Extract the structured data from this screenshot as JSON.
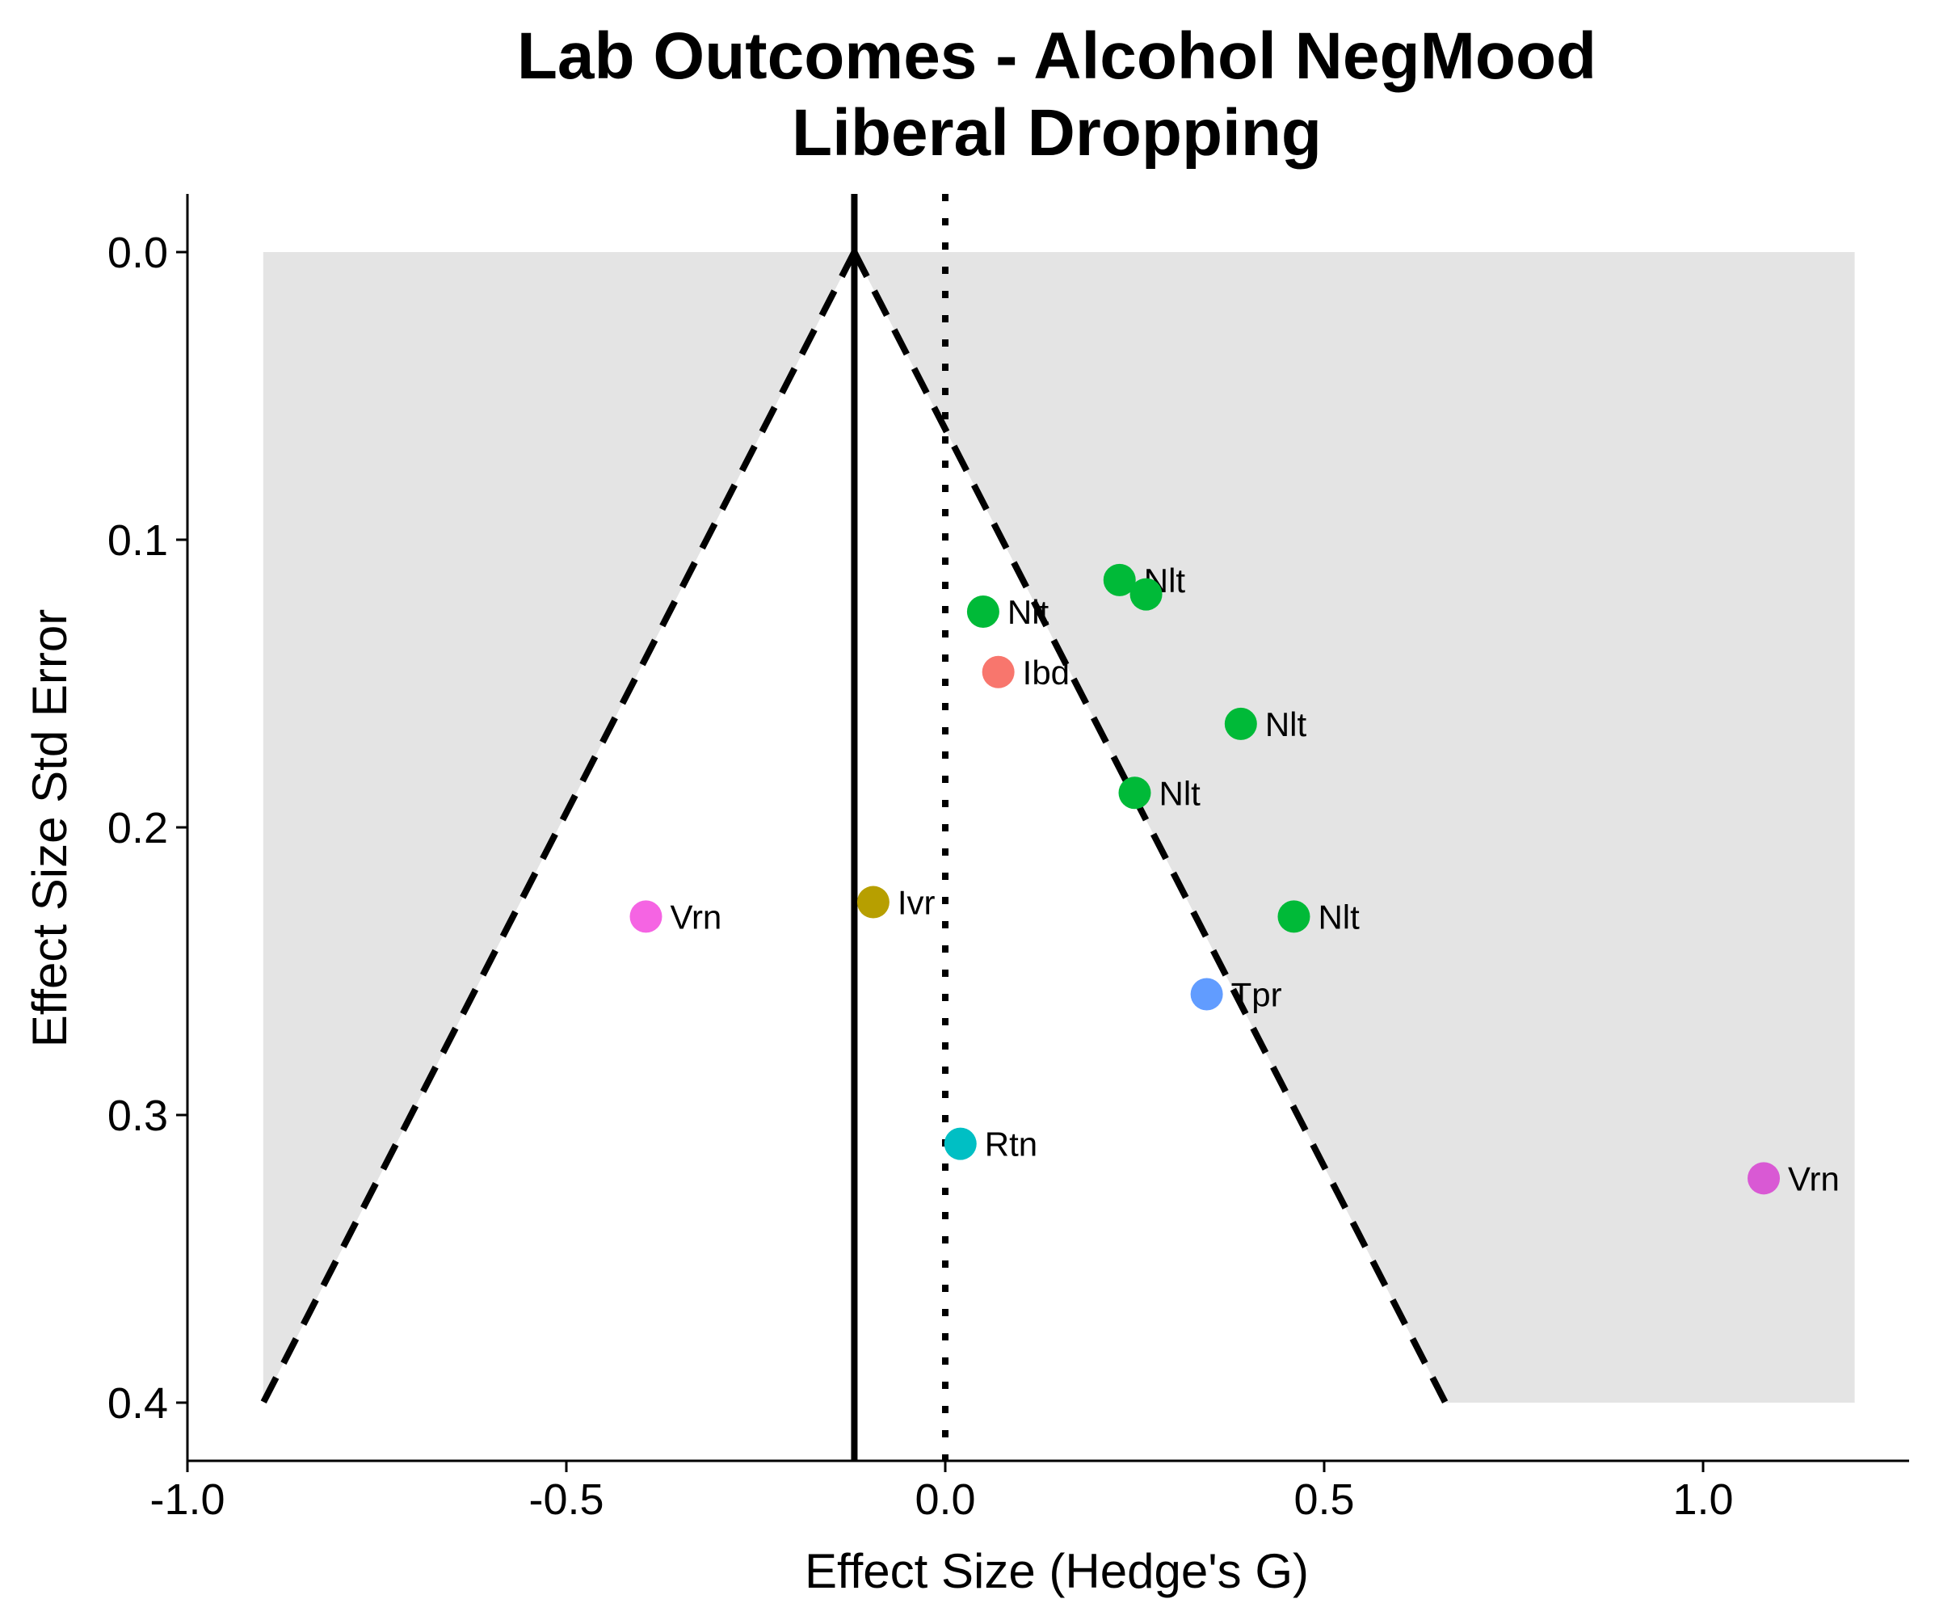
{
  "chart_data": {
    "type": "scatter",
    "title": [
      "Lab Outcomes - Alcohol NegMood",
      "Liberal Dropping"
    ],
    "xlabel": "Effect Size (Hedge's G)",
    "ylabel": "Effect Size Std Error",
    "xlim": [
      -1.0,
      1.27
    ],
    "ylim": [
      0.4,
      0.0
    ],
    "y_reversed": true,
    "xticks": [
      -1.0,
      -0.5,
      0.0,
      0.5,
      1.0
    ],
    "xtick_labels": [
      "-1.0",
      "-0.5",
      "0.0",
      "0.5",
      "1.0"
    ],
    "yticks": [
      0.0,
      0.1,
      0.2,
      0.3,
      0.4
    ],
    "ytick_labels": [
      "0.0",
      "0.1",
      "0.2",
      "0.3",
      "0.4"
    ],
    "grid": false,
    "legend": "none",
    "summary_effect": -0.12,
    "zero_line": 0.0,
    "funnel": {
      "apex": [
        -0.12,
        0.0
      ],
      "left_base": [
        -0.9,
        0.4
      ],
      "right_base": [
        0.66,
        0.4
      ]
    },
    "shaded_region": {
      "x": [
        -0.9,
        1.2
      ],
      "y": [
        0.0,
        0.4
      ],
      "color": "#e4e4e4"
    },
    "points": [
      {
        "label": "Nlt",
        "x": 0.23,
        "y": 0.114,
        "color": "#00ba38"
      },
      {
        "label": "",
        "x": 0.265,
        "y": 0.119,
        "color": "#00ba38"
      },
      {
        "label": "Nlt",
        "x": 0.05,
        "y": 0.125,
        "color": "#00ba38"
      },
      {
        "label": "Ibd",
        "x": 0.07,
        "y": 0.146,
        "color": "#f8766d"
      },
      {
        "label": "Nlt",
        "x": 0.39,
        "y": 0.164,
        "color": "#00ba38"
      },
      {
        "label": "Nlt",
        "x": 0.25,
        "y": 0.188,
        "color": "#00ba38"
      },
      {
        "label": "Ivr",
        "x": -0.095,
        "y": 0.226,
        "color": "#b79f00"
      },
      {
        "label": "Vrn",
        "x": -0.395,
        "y": 0.231,
        "color": "#f564e3"
      },
      {
        "label": "Nlt",
        "x": 0.46,
        "y": 0.231,
        "color": "#00ba38"
      },
      {
        "label": "Tpr",
        "x": 0.345,
        "y": 0.258,
        "color": "#619cff"
      },
      {
        "label": "Rtn",
        "x": 0.02,
        "y": 0.31,
        "color": "#00bfc4"
      },
      {
        "label": "Vrn",
        "x": 1.08,
        "y": 0.322,
        "color": "#d959d4"
      }
    ]
  }
}
